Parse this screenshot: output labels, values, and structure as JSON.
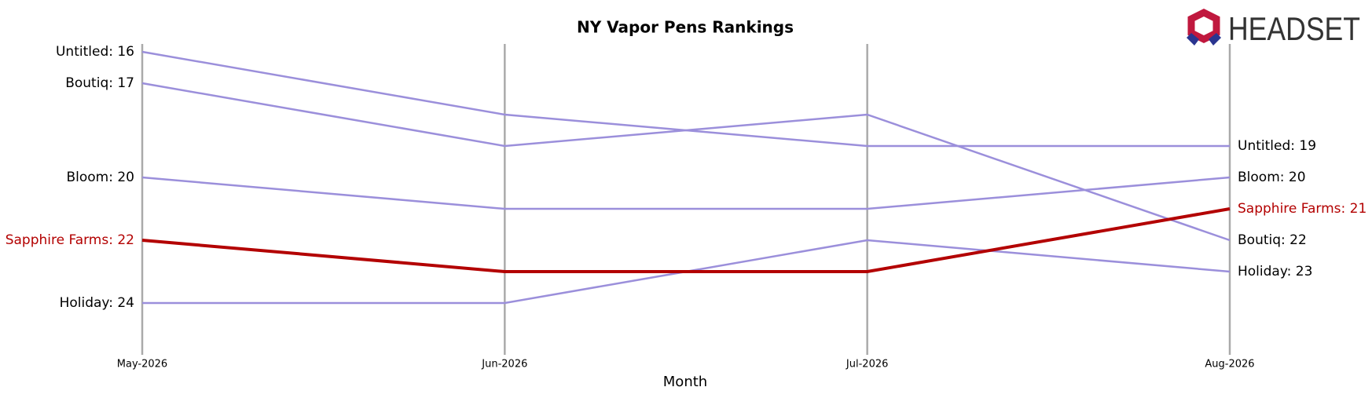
{
  "logo": "HEADSET",
  "chart_data": {
    "type": "bump",
    "title": "NY Vapor Pens Rankings",
    "x_label": "Month",
    "categories": [
      "May-2026",
      "Jun-2026",
      "Jul-2026",
      "Aug-2026"
    ],
    "ylim": [
      24.5,
      15.5
    ],
    "inverted": true,
    "series": [
      {
        "name": "Untitled",
        "color": "#9b8fdb",
        "values": [
          16,
          18,
          19,
          19
        ],
        "value_labels": [
          "Untitled: 16",
          null,
          null,
          "Untitled: 19"
        ]
      },
      {
        "name": "Boutiq",
        "color": "#9b8fdb",
        "values": [
          17,
          19,
          18,
          22
        ],
        "value_labels": [
          "Boutiq: 17",
          null,
          null,
          "Boutiq: 22"
        ]
      },
      {
        "name": "Bloom",
        "color": "#9b8fdb",
        "values": [
          20,
          21,
          21,
          20
        ],
        "value_labels": [
          "Bloom: 20",
          null,
          null,
          "Bloom: 20"
        ]
      },
      {
        "name": "Holiday",
        "color": "#9b8fdb",
        "values": [
          24,
          24,
          22,
          23
        ],
        "value_labels": [
          "Holiday: 24",
          null,
          null,
          "Holiday: 23"
        ]
      },
      {
        "name": "Sapphire Farms",
        "color": "#b30000",
        "highlight": true,
        "values": [
          22,
          23,
          23,
          21
        ],
        "value_labels": [
          "Sapphire Farms: 22",
          null,
          null,
          "Sapphire Farms: 21"
        ]
      }
    ]
  }
}
